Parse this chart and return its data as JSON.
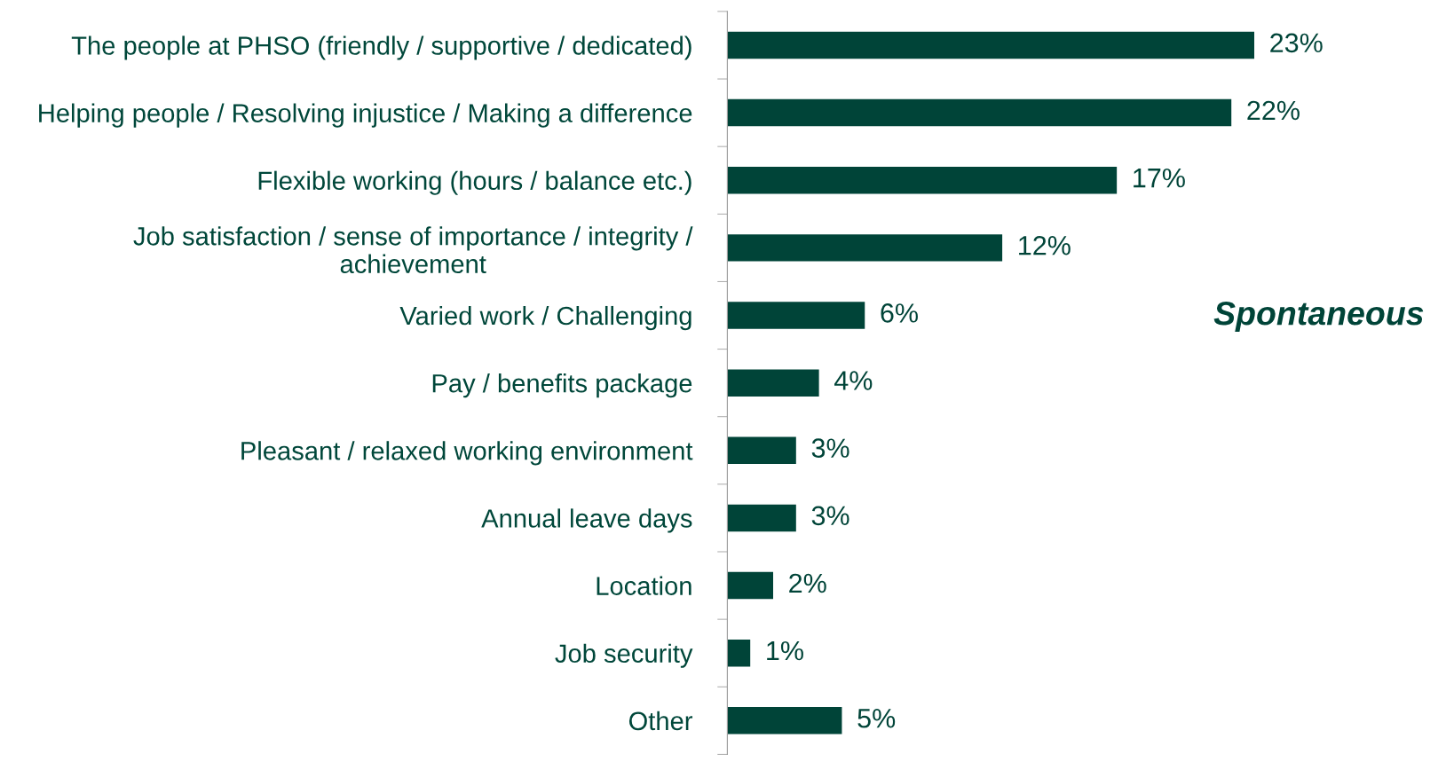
{
  "chart_data": {
    "type": "bar",
    "orientation": "horizontal",
    "color": "#004438",
    "categories": [
      "The people at PHSO (friendly / supportive / dedicated)",
      "Helping people / Resolving injustice / Making a difference",
      "Flexible working (hours / balance etc.)",
      "Job satisfaction / sense of importance / integrity /\nachievement",
      "Varied work / Challenging",
      "Pay / benefits package",
      "Pleasant / relaxed working environment",
      "Annual leave days",
      "Location",
      "Job security",
      "Other"
    ],
    "values": [
      23,
      22,
      17,
      12,
      6,
      4,
      3,
      3,
      2,
      1,
      5
    ],
    "value_labels": [
      "23%",
      "22%",
      "17%",
      "12%",
      "6%",
      "4%",
      "3%",
      "3%",
      "2%",
      "1%",
      "5%"
    ],
    "annotations": [
      "Spontaneous"
    ],
    "grid": false
  }
}
